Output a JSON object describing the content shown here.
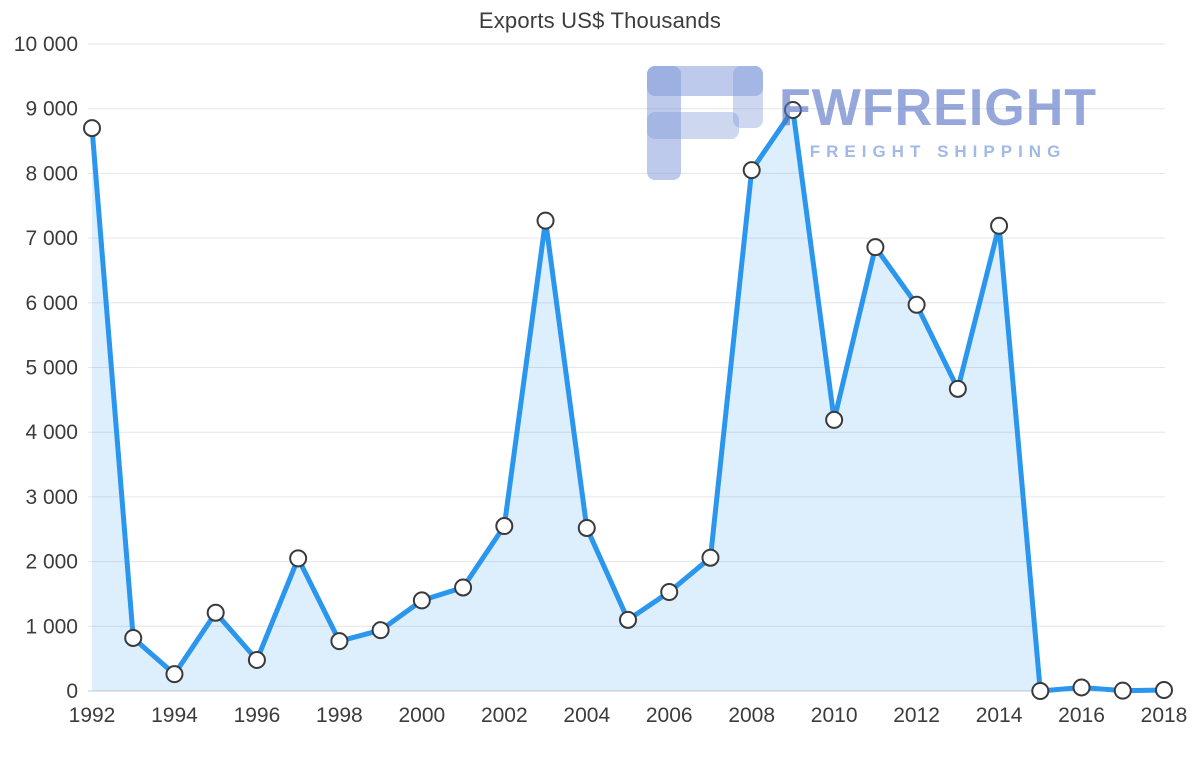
{
  "chart_data": {
    "type": "area",
    "title": "Exports US$ Thousands",
    "x": [
      1992,
      1993,
      1994,
      1995,
      1996,
      1997,
      1998,
      1999,
      2000,
      2001,
      2002,
      2003,
      2004,
      2005,
      2006,
      2007,
      2008,
      2009,
      2010,
      2011,
      2012,
      2013,
      2014,
      2015,
      2016,
      2017,
      2018
    ],
    "values": [
      8700,
      820,
      260,
      1210,
      480,
      2050,
      770,
      940,
      1400,
      1600,
      2550,
      7270,
      2520,
      1100,
      1530,
      2060,
      8050,
      8980,
      4190,
      6860,
      5970,
      4670,
      7190,
      0,
      55,
      5,
      15
    ],
    "xlabel": "",
    "ylabel": "",
    "ylim": [
      0,
      10000
    ],
    "y_ticks": [
      0,
      1000,
      2000,
      3000,
      4000,
      5000,
      6000,
      7000,
      8000,
      9000,
      10000
    ],
    "y_tick_labels": [
      "0",
      "1 000",
      "2 000",
      "3 000",
      "4 000",
      "5 000",
      "6 000",
      "7 000",
      "8 000",
      "9 000",
      "10 000"
    ],
    "x_tick_labels": [
      "1992",
      "1994",
      "1996",
      "1998",
      "2000",
      "2002",
      "2004",
      "2006",
      "2008",
      "2010",
      "2012",
      "2014",
      "2016",
      "2018"
    ],
    "x_tick_years": [
      1992,
      1994,
      1996,
      1998,
      2000,
      2002,
      2004,
      2006,
      2008,
      2010,
      2012,
      2014,
      2016,
      2018
    ],
    "grid": true,
    "legend": "none",
    "colors": {
      "line": "#2B96EE",
      "area_fill": "#2B96EE",
      "area_opacity": "0.16",
      "point_fill": "#ffffff",
      "point_stroke": "#3a3a3a",
      "grid": "#e6e6e6",
      "baseline": "#c9c9c9",
      "axis_text": "#3c3c3c"
    }
  },
  "watermark": {
    "brand": "FWFREIGHT",
    "tagline": "FREIGHT SHIPPING",
    "brand_color": "#5673C5",
    "tagline_color": "#8BA6E2",
    "logo_color": "#7C95D8"
  }
}
